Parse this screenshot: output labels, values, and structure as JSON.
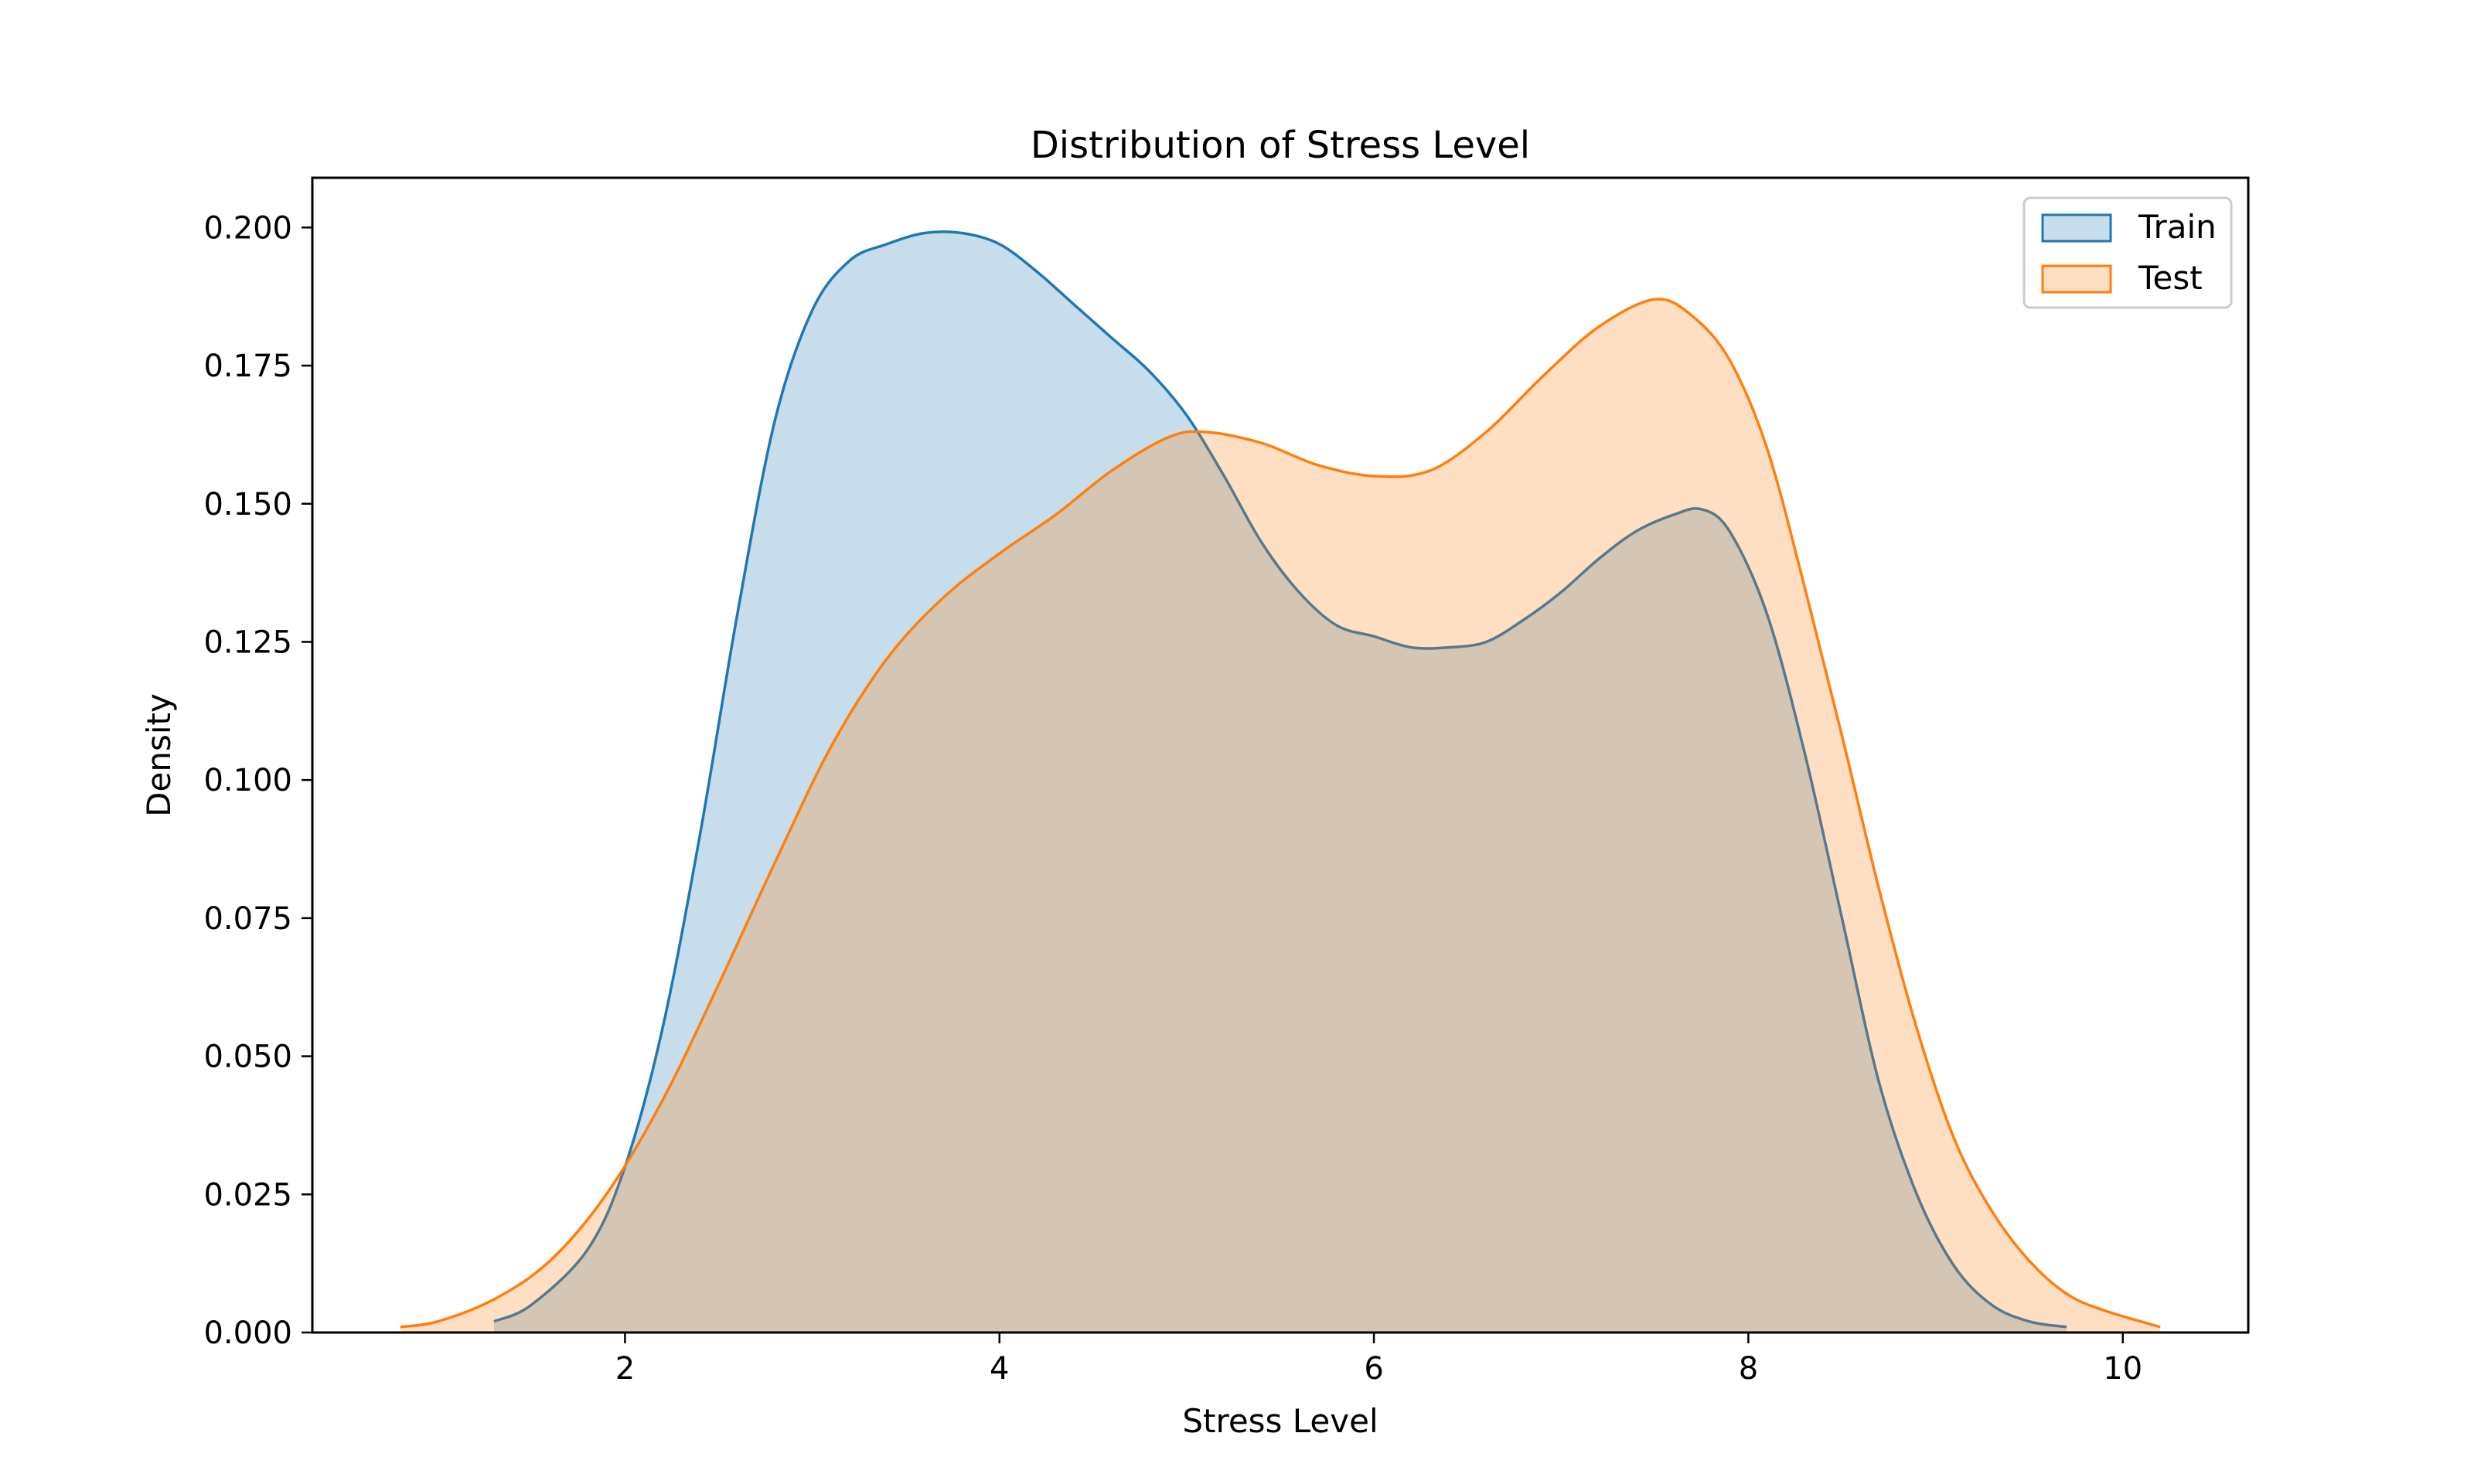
{
  "chart_data": {
    "type": "area",
    "title": "Distribution of Stress Level",
    "xlabel": "Stress Level",
    "ylabel": "Density",
    "xlim": [
      0.33,
      10.67
    ],
    "ylim": [
      0.0,
      0.209
    ],
    "xticks": [
      2,
      4,
      6,
      8,
      10
    ],
    "yticks": [
      0.0,
      0.025,
      0.05,
      0.075,
      0.1,
      0.125,
      0.15,
      0.175,
      0.2
    ],
    "yticklabels": [
      "0.000",
      "0.025",
      "0.050",
      "0.075",
      "0.100",
      "0.125",
      "0.150",
      "0.175",
      "0.200"
    ],
    "legend_position": "top-right",
    "grid": false,
    "series": [
      {
        "name": "Train",
        "color": "#1f77b4",
        "fill_opacity": 0.25,
        "x": [
          1.3,
          1.5,
          1.8,
          2.0,
          2.2,
          2.4,
          2.6,
          2.8,
          3.0,
          3.2,
          3.4,
          3.6,
          3.8,
          4.0,
          4.2,
          4.4,
          4.6,
          4.8,
          5.0,
          5.2,
          5.4,
          5.6,
          5.8,
          6.0,
          6.2,
          6.4,
          6.6,
          6.8,
          7.0,
          7.2,
          7.4,
          7.6,
          7.75,
          7.9,
          8.1,
          8.3,
          8.5,
          8.7,
          8.9,
          9.1,
          9.3,
          9.5,
          9.7
        ],
        "y": [
          0.002,
          0.005,
          0.015,
          0.03,
          0.055,
          0.09,
          0.13,
          0.165,
          0.185,
          0.194,
          0.197,
          0.199,
          0.199,
          0.197,
          0.192,
          0.186,
          0.18,
          0.174,
          0.166,
          0.155,
          0.143,
          0.134,
          0.128,
          0.126,
          0.124,
          0.124,
          0.125,
          0.129,
          0.134,
          0.14,
          0.145,
          0.148,
          0.149,
          0.145,
          0.13,
          0.105,
          0.075,
          0.045,
          0.025,
          0.012,
          0.005,
          0.002,
          0.001
        ]
      },
      {
        "name": "Test",
        "color": "#ff7f0e",
        "fill_opacity": 0.25,
        "x": [
          0.8,
          1.0,
          1.3,
          1.6,
          1.9,
          2.2,
          2.5,
          2.8,
          3.1,
          3.4,
          3.7,
          4.0,
          4.3,
          4.6,
          4.9,
          5.1,
          5.4,
          5.7,
          6.0,
          6.3,
          6.6,
          6.9,
          7.2,
          7.5,
          7.7,
          7.9,
          8.1,
          8.3,
          8.5,
          8.7,
          8.9,
          9.1,
          9.3,
          9.5,
          9.7,
          9.9,
          10.2
        ],
        "y": [
          0.001,
          0.002,
          0.006,
          0.013,
          0.025,
          0.042,
          0.063,
          0.085,
          0.106,
          0.122,
          0.133,
          0.141,
          0.148,
          0.156,
          0.162,
          0.163,
          0.161,
          0.157,
          0.155,
          0.156,
          0.163,
          0.173,
          0.182,
          0.187,
          0.184,
          0.176,
          0.16,
          0.135,
          0.108,
          0.08,
          0.055,
          0.035,
          0.022,
          0.013,
          0.007,
          0.004,
          0.001
        ]
      }
    ]
  }
}
